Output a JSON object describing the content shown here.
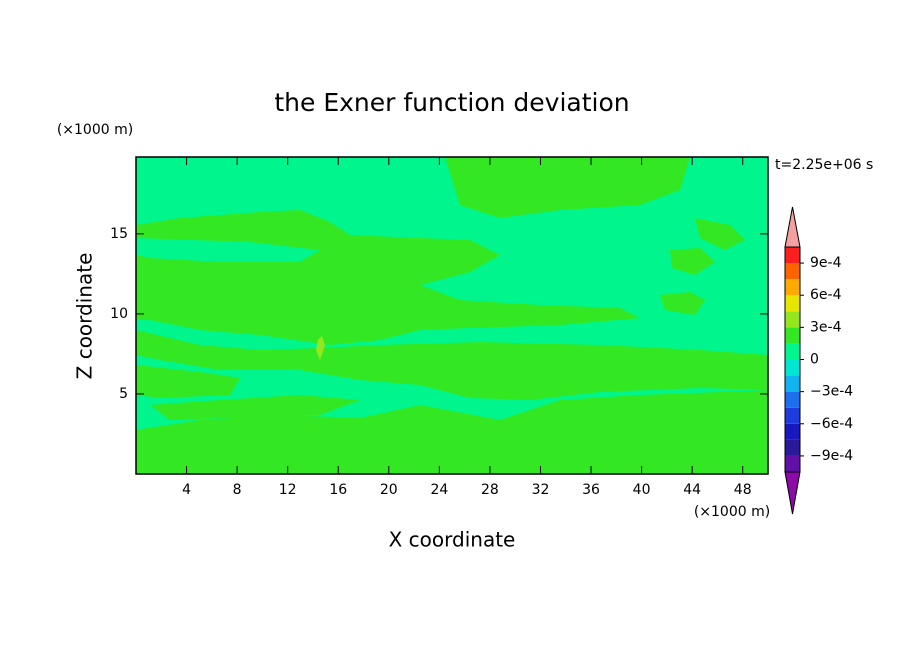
{
  "chart_data": {
    "type": "contour",
    "title": "the Exner function deviation",
    "x_label": "X coordinate",
    "y_label": "Z coordinate",
    "x_unit": "(×1000 m)",
    "y_unit": "(×1000 m)",
    "annotation": "t=2.25e+06 s",
    "xlim": [
      0,
      50
    ],
    "xticks": [
      4,
      8,
      12,
      16,
      20,
      24,
      28,
      32,
      36,
      40,
      44,
      48
    ],
    "ylim": [
      0,
      19.8
    ],
    "yticks": [
      5,
      10,
      15
    ],
    "colorbar": {
      "clim": [
        -0.00105,
        0.00105
      ],
      "colors": [
        "#6010a8",
        "#2a1a9a",
        "#1818c0",
        "#1c3ce0",
        "#1e6ef0",
        "#10b4f0",
        "#00e6d2",
        "#00f58c",
        "#33e822",
        "#96e61e",
        "#e6e600",
        "#ffaa00",
        "#ff6400",
        "#ff1e1e"
      ],
      "under_color": "#8c0aa8",
      "over_color": "#f4a0a0",
      "ticks": [
        {
          "value": 0.0009,
          "label": "9e-4"
        },
        {
          "value": 0.0006,
          "label": "6e-4"
        },
        {
          "value": 0.0003,
          "label": "3e-4"
        },
        0,
        {
          "value": -0.0003,
          "label": "−3e-4"
        },
        {
          "value": -0.0006,
          "label": "−6e-4"
        },
        {
          "value": -0.0009,
          "label": "−9e-4"
        }
      ]
    }
  }
}
